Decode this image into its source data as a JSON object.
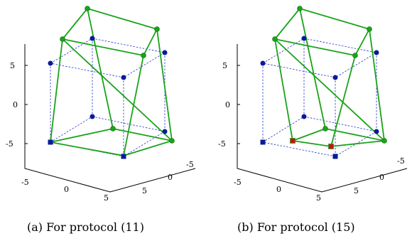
{
  "panels": [
    {
      "caption": "(a) For protocol (11)",
      "z_ticks": [
        "5",
        "0",
        "-5"
      ],
      "x_ticks": [
        "-5",
        "0",
        "5"
      ],
      "y_ticks": [
        "5",
        "0",
        "-5"
      ]
    },
    {
      "caption": "(b) For protocol (15)",
      "z_ticks": [
        "5",
        "0",
        "-5"
      ],
      "x_ticks": [
        "-5",
        "0",
        "5"
      ],
      "y_ticks": [
        "5",
        "0",
        "-5"
      ]
    }
  ],
  "colors": {
    "green": "#1aa31a",
    "blue": "#0a1a99",
    "red": "#cc1111",
    "dashed": "#2233cc"
  }
}
